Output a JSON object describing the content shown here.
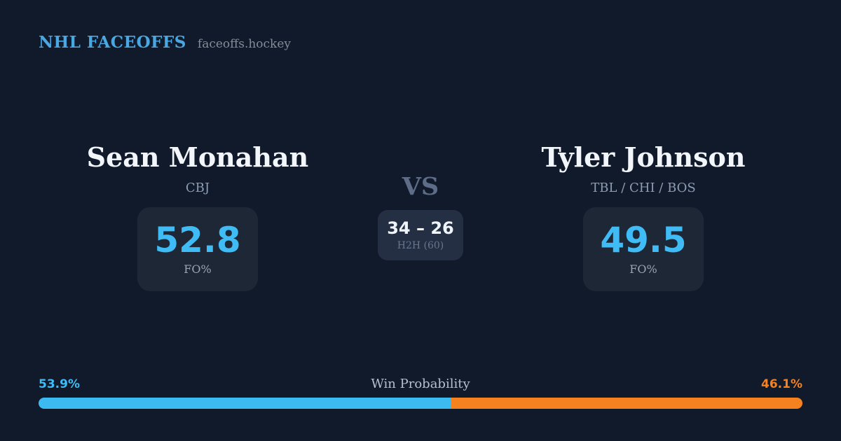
{
  "header": {
    "title": "NHL FACEOFFS",
    "domain": "faceoffs.hockey"
  },
  "players": {
    "left": {
      "name": "Sean Monahan",
      "teams": "CBJ",
      "fo_pct": "52.8",
      "stat_label": "FO%"
    },
    "right": {
      "name": "Tyler Johnson",
      "teams": "TBL / CHI / BOS",
      "fo_pct": "49.5",
      "stat_label": "FO%"
    }
  },
  "matchup": {
    "vs_label": "VS",
    "h2h_score": "34 – 26",
    "h2h_label": "H2H (60)"
  },
  "win_probability": {
    "label": "Win Probability",
    "left_pct_label": "53.9%",
    "right_pct_label": "46.1%",
    "left_value": 53.9,
    "right_value": 46.1
  },
  "colors": {
    "background": "#111a2a",
    "panel": "#1d2736",
    "panel_center": "#242f43",
    "accent_blue": "#3fbcf6",
    "accent_orange": "#f5821f",
    "title_blue": "#49a7e2"
  }
}
